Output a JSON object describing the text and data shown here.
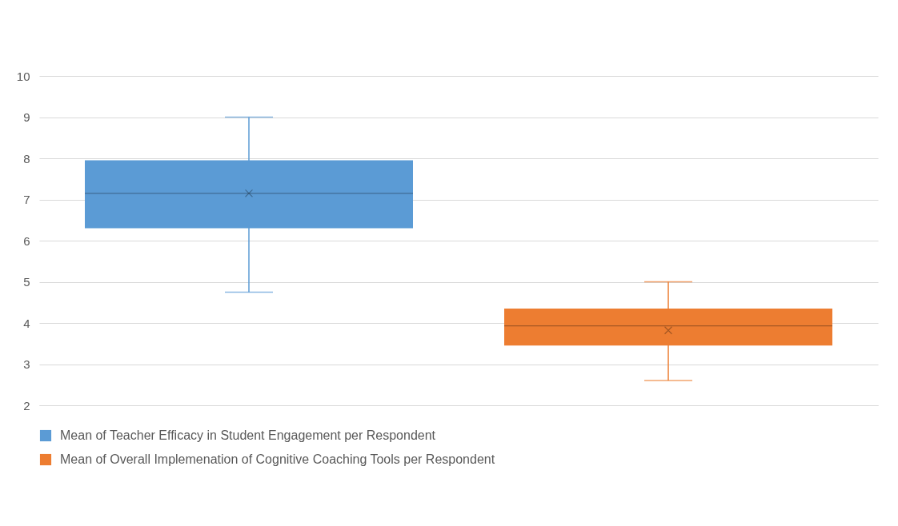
{
  "chart_data": {
    "type": "box",
    "categories": [
      null
    ],
    "ylim": [
      2,
      10
    ],
    "yticks": [
      2,
      3,
      4,
      5,
      6,
      7,
      8,
      9,
      10
    ],
    "grid": "y",
    "legend": "bottom",
    "series": [
      {
        "name": "Mean of Teacher Efficacy in Student Engagement per Respondent",
        "color": "#5b9bd5",
        "boxes": [
          {
            "low": 4.75,
            "q1": 6.3,
            "median": 7.15,
            "q3": 7.95,
            "high": 9,
            "mean": 7.15
          }
        ]
      },
      {
        "name": "Mean of Overall Implemenation of Cognitive Coaching Tools per Respondent",
        "color": "#ed7d31",
        "boxes": [
          {
            "low": 2.6,
            "q1": 3.45,
            "median": 3.93,
            "q3": 4.35,
            "high": 5,
            "mean": 3.82
          }
        ]
      }
    ]
  }
}
